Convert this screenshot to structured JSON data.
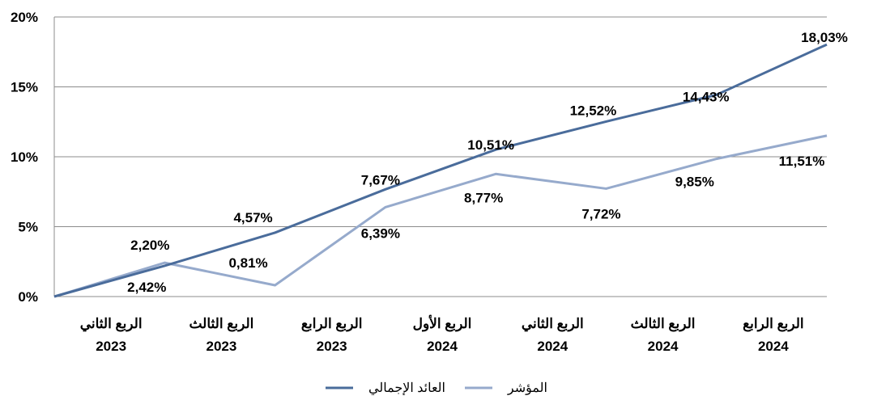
{
  "chart_data": {
    "type": "line",
    "title": "",
    "xlabel": "",
    "ylabel": "",
    "ylim": [
      0,
      20
    ],
    "yticks": [
      "0%",
      "5%",
      "10%",
      "15%",
      "20%"
    ],
    "grid": true,
    "legend_position": "bottom",
    "categories": [
      {
        "line1": "",
        "line2": ""
      },
      {
        "line1": "الربع الثاني",
        "line2": "2023"
      },
      {
        "line1": "الربع الثالث",
        "line2": "2023"
      },
      {
        "line1": "الربع الرابع",
        "line2": "2023"
      },
      {
        "line1": "الربع الأول",
        "line2": "2024"
      },
      {
        "line1": "الربع الثاني",
        "line2": "2024"
      },
      {
        "line1": "الربع الثالث",
        "line2": "2024"
      },
      {
        "line1": "الربع الرابع",
        "line2": "2024"
      }
    ],
    "series": [
      {
        "name": "العائد الإجمالي",
        "color": "#4a6c9b",
        "values": [
          0,
          2.2,
          4.57,
          7.67,
          10.51,
          12.52,
          14.43,
          18.03
        ],
        "labels": [
          "",
          "2,20%",
          "4,57%",
          "7,67%",
          "10,51%",
          "12,52%",
          "14,43%",
          "18,03%"
        ]
      },
      {
        "name": "المؤشر",
        "color": "#96aacc",
        "values": [
          0,
          2.42,
          0.81,
          6.39,
          8.77,
          7.72,
          9.85,
          11.51
        ],
        "labels": [
          "",
          "2,42%",
          "0,81%",
          "6,39%",
          "8,77%",
          "7,72%",
          "9,85%",
          "11,51%"
        ]
      }
    ],
    "colors": {
      "grid": "#8c8c8c",
      "axis": "#8c8c8c"
    }
  }
}
